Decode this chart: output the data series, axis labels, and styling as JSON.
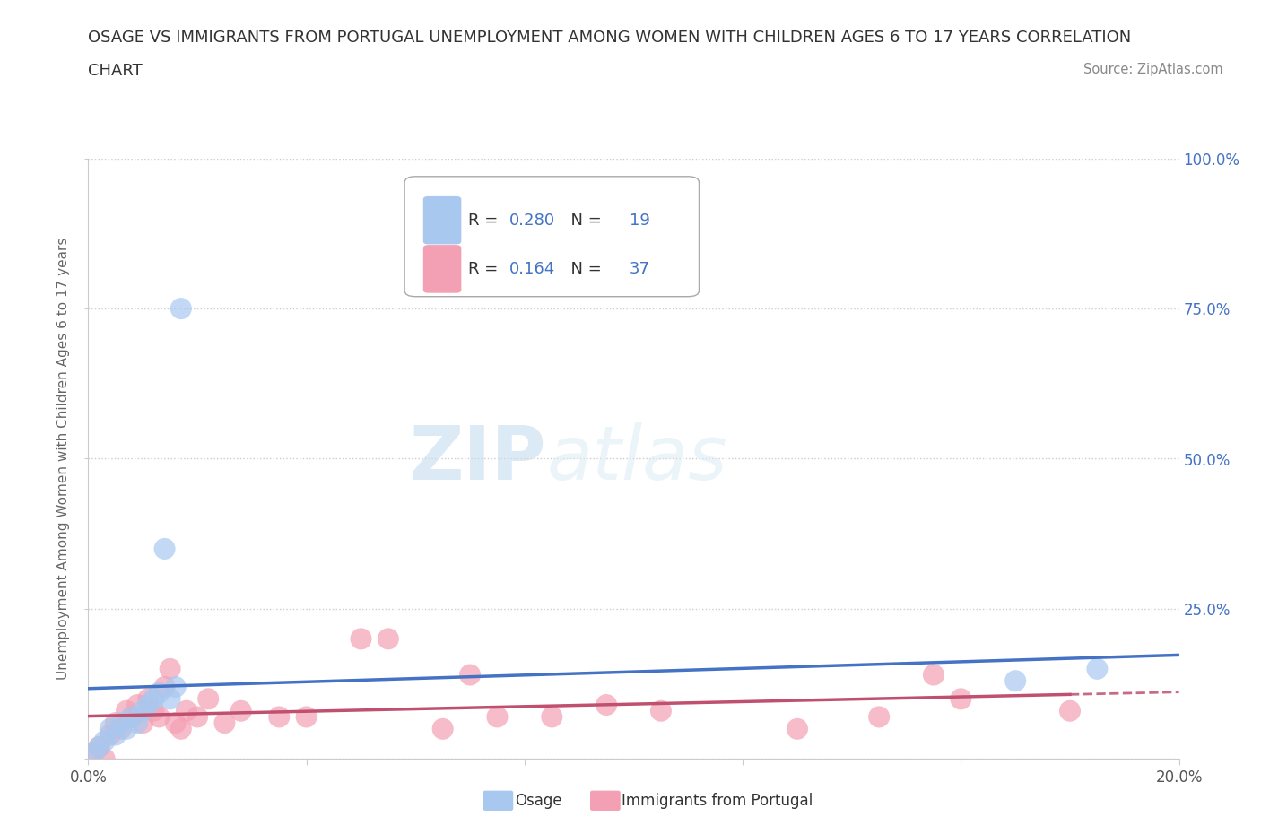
{
  "title_line1": "OSAGE VS IMMIGRANTS FROM PORTUGAL UNEMPLOYMENT AMONG WOMEN WITH CHILDREN AGES 6 TO 17 YEARS CORRELATION",
  "title_line2": "CHART",
  "source": "Source: ZipAtlas.com",
  "ylabel": "Unemployment Among Women with Children Ages 6 to 17 years",
  "xlim": [
    0.0,
    0.2
  ],
  "ylim": [
    0.0,
    1.0
  ],
  "osage_R": 0.28,
  "osage_N": 19,
  "portugal_R": 0.164,
  "portugal_N": 37,
  "osage_color": "#a8c8f0",
  "osage_line_color": "#4472c4",
  "portugal_color": "#f4a0b4",
  "portugal_line_color": "#c05070",
  "background_color": "#ffffff",
  "osage_x": [
    0.001,
    0.002,
    0.003,
    0.004,
    0.005,
    0.006,
    0.007,
    0.008,
    0.009,
    0.01,
    0.011,
    0.012,
    0.013,
    0.014,
    0.015,
    0.016,
    0.017,
    0.185,
    0.17
  ],
  "osage_y": [
    0.01,
    0.02,
    0.03,
    0.05,
    0.04,
    0.06,
    0.05,
    0.07,
    0.06,
    0.08,
    0.09,
    0.1,
    0.11,
    0.35,
    0.1,
    0.12,
    0.75,
    0.15,
    0.13
  ],
  "portugal_x": [
    0.001,
    0.002,
    0.003,
    0.004,
    0.005,
    0.006,
    0.007,
    0.008,
    0.009,
    0.01,
    0.011,
    0.012,
    0.013,
    0.014,
    0.015,
    0.016,
    0.017,
    0.018,
    0.02,
    0.022,
    0.025,
    0.028,
    0.035,
    0.04,
    0.05,
    0.055,
    0.065,
    0.07,
    0.075,
    0.085,
    0.095,
    0.105,
    0.13,
    0.145,
    0.155,
    0.16,
    0.18
  ],
  "portugal_y": [
    0.01,
    0.02,
    0.0,
    0.04,
    0.06,
    0.05,
    0.08,
    0.07,
    0.09,
    0.06,
    0.1,
    0.08,
    0.07,
    0.12,
    0.15,
    0.06,
    0.05,
    0.08,
    0.07,
    0.1,
    0.06,
    0.08,
    0.07,
    0.07,
    0.2,
    0.2,
    0.05,
    0.14,
    0.07,
    0.07,
    0.09,
    0.08,
    0.05,
    0.07,
    0.14,
    0.1,
    0.08
  ]
}
